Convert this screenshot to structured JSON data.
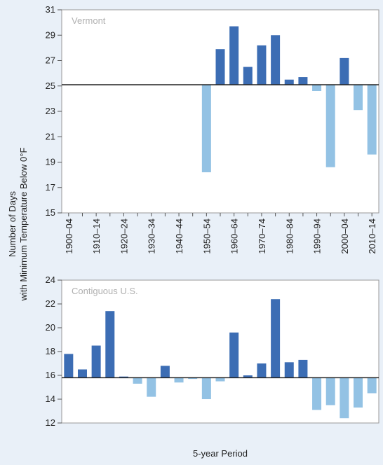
{
  "ylabel": [
    "Number of Days",
    "with Minimum Temperature Below 0°F"
  ],
  "xlabel": "5-year Period",
  "chart_data": [
    {
      "type": "bar",
      "title": "Vermont",
      "categories": [
        "1900–04",
        null,
        "1910–14",
        null,
        "1920–24",
        null,
        "1930–34",
        null,
        "1940–44",
        null,
        "1950–54",
        null,
        "1960–64",
        null,
        "1970–74",
        null,
        "1980–84",
        null,
        "1990–94",
        null,
        "2000–04",
        null,
        "2010–14"
      ],
      "values": [
        null,
        null,
        null,
        null,
        null,
        null,
        null,
        null,
        null,
        null,
        18.2,
        27.9,
        29.7,
        26.5,
        28.2,
        29.0,
        25.5,
        25.7,
        24.6,
        18.6,
        27.2,
        23.1,
        19.6
      ],
      "baseline": 25.1,
      "color_above": "#3c6db4",
      "color_below": "#93c2e4",
      "ylim": [
        15,
        31
      ],
      "yticks": [
        15,
        17,
        19,
        21,
        23,
        25,
        27,
        29,
        31
      ]
    },
    {
      "type": "bar",
      "title": "Contiguous U.S.",
      "values": [
        17.8,
        16.5,
        18.5,
        21.4,
        15.9,
        15.3,
        14.2,
        16.8,
        15.4,
        15.7,
        14.0,
        15.5,
        19.6,
        16.0,
        17.0,
        22.4,
        17.1,
        17.3,
        13.1,
        13.5,
        12.4,
        13.3,
        14.5
      ],
      "baseline": 15.8,
      "color_above": "#3c6db4",
      "color_below": "#93c2e4",
      "ylim": [
        12,
        24
      ],
      "yticks": [
        12,
        14,
        16,
        18,
        20,
        22,
        24
      ]
    }
  ]
}
